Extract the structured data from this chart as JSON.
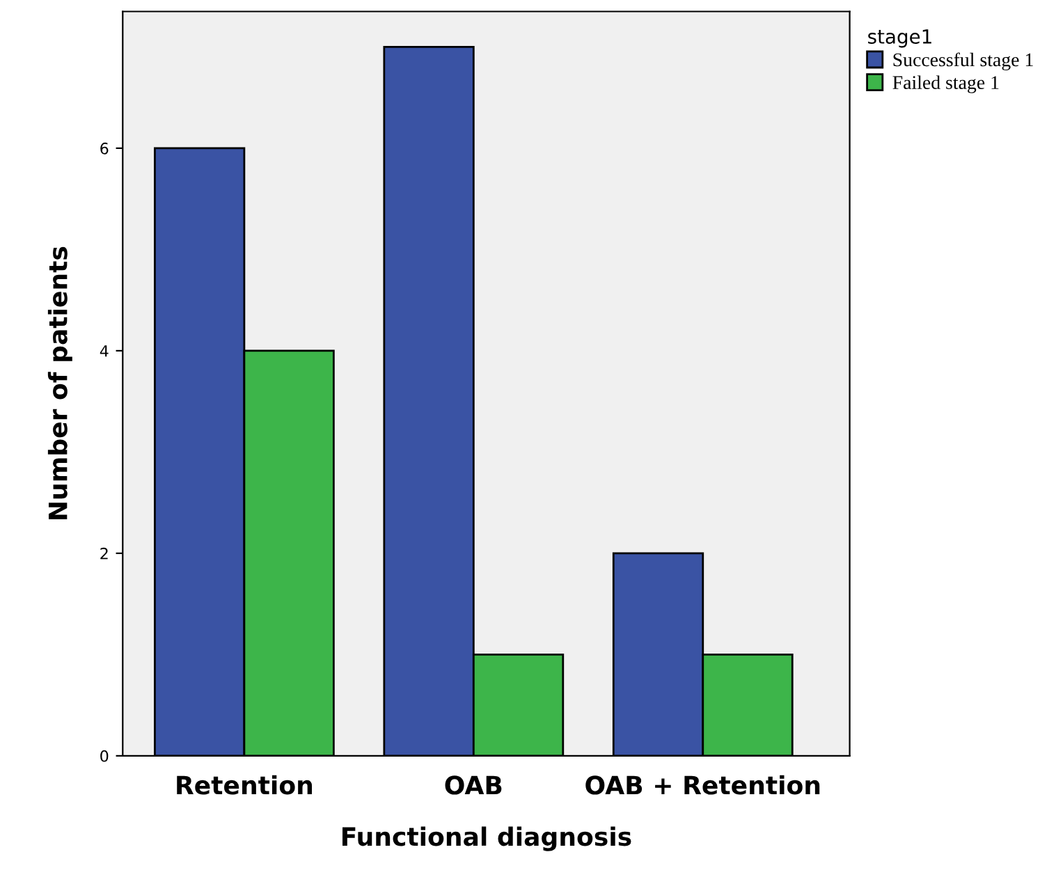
{
  "chart_data": {
    "type": "bar",
    "categories": [
      "Retention",
      "OAB",
      "OAB + Retention"
    ],
    "series": [
      {
        "name": "Successful stage 1",
        "color": "#3a53a4",
        "values": [
          6,
          7,
          2
        ]
      },
      {
        "name": "Failed stage 1",
        "color": "#3db54a",
        "values": [
          4,
          1,
          1
        ]
      }
    ],
    "xlabel": "Functional diagnosis",
    "ylabel": "Number of patients",
    "legend_title": "stage1",
    "legend": "top right",
    "ylim": [
      0,
      7.35
    ],
    "yticks": [
      0,
      2,
      4,
      6
    ],
    "grid": false
  }
}
